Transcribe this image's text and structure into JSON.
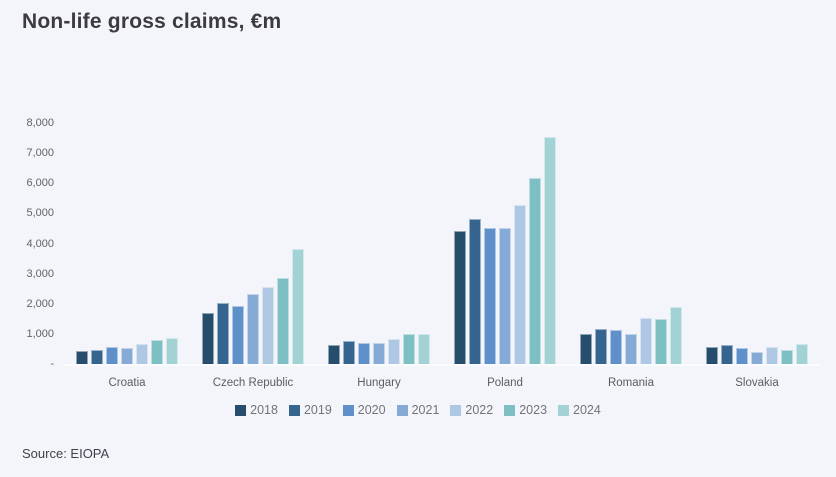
{
  "title": "Non-life gross claims, €m",
  "source": "Source: EIOPA",
  "colors": {
    "background": "#f4f5fa",
    "baseline": "#fbfcfe",
    "title_text": "#3b3b40",
    "axis_text": "#62626b"
  },
  "chart_data": {
    "type": "bar",
    "title": "Non-life gross claims, €m",
    "categories": [
      "Croatia",
      "Czech Republic",
      "Hungary",
      "Poland",
      "Romania",
      "Slovakia"
    ],
    "series": [
      {
        "name": "2018",
        "color": "#274d6d",
        "values": [
          420,
          1700,
          640,
          4400,
          1000,
          560
        ]
      },
      {
        "name": "2019",
        "color": "#35648f",
        "values": [
          480,
          2030,
          750,
          4800,
          1150,
          640
        ]
      },
      {
        "name": "2020",
        "color": "#5f90c9",
        "values": [
          580,
          1920,
          690,
          4500,
          1120,
          540
        ]
      },
      {
        "name": "2021",
        "color": "#86aad6",
        "values": [
          520,
          2320,
          700,
          4500,
          1000,
          410
        ]
      },
      {
        "name": "2022",
        "color": "#aec7e3",
        "values": [
          650,
          2570,
          840,
          5270,
          1520,
          550
        ]
      },
      {
        "name": "2023",
        "color": "#7dbfc3",
        "values": [
          790,
          2860,
          990,
          6170,
          1490,
          450
        ]
      },
      {
        "name": "2024",
        "color": "#a3d2d5",
        "values": [
          860,
          3830,
          990,
          7550,
          1900,
          660
        ]
      }
    ],
    "xlabel": "",
    "ylabel": "",
    "ylim": [
      0,
      8000
    ],
    "yticks": [
      {
        "value": 8000,
        "label": "8,000"
      },
      {
        "value": 7000,
        "label": "7,000"
      },
      {
        "value": 6000,
        "label": "6,000"
      },
      {
        "value": 5000,
        "label": "5,000"
      },
      {
        "value": 4000,
        "label": "4,000"
      },
      {
        "value": 3000,
        "label": "3,000"
      },
      {
        "value": 2000,
        "label": "2,000"
      },
      {
        "value": 1000,
        "label": "1,000"
      },
      {
        "value": 0,
        "label": "-"
      }
    ],
    "grid": false,
    "legend_position": "bottom"
  }
}
